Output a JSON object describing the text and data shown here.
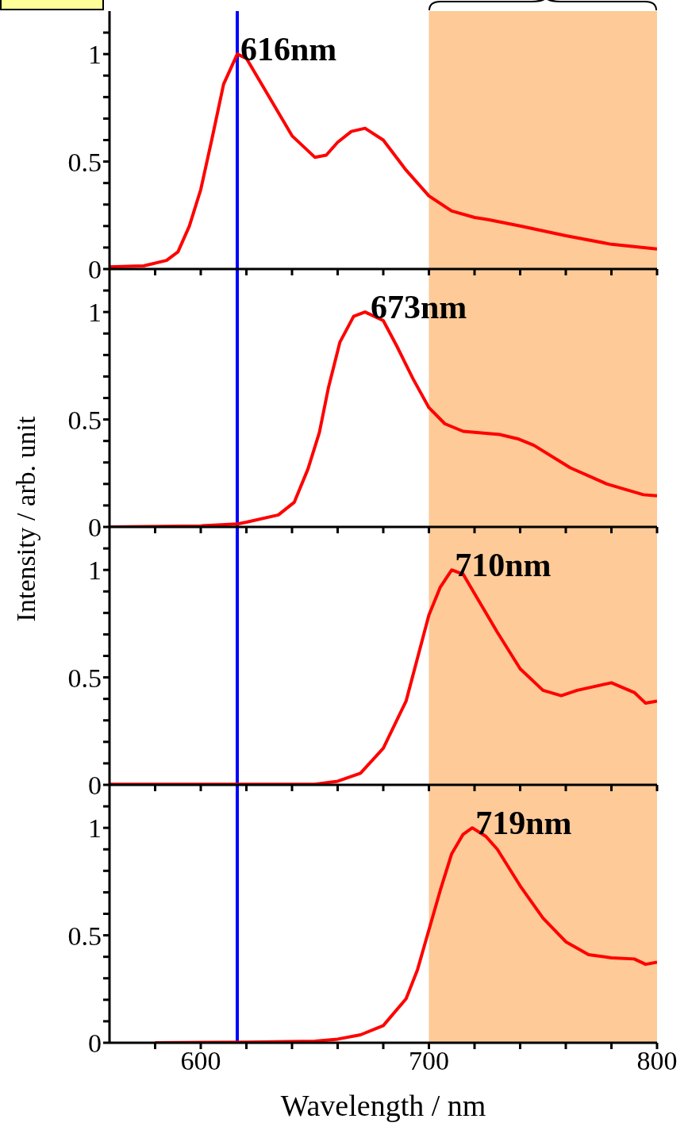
{
  "chart_data": [
    {
      "type": "line",
      "tick_labels": "y",
      "xlim": [
        560,
        800
      ],
      "ylim": [
        0,
        1.2
      ],
      "xticks": [
        {
          "value": 580,
          "label": null
        },
        600,
        {
          "value": 620,
          "label": null
        },
        {
          "value": 640,
          "label": null
        },
        {
          "value": 660,
          "label": null
        },
        {
          "value": 680,
          "label": null
        },
        700,
        {
          "value": 720,
          "label": null
        },
        {
          "value": 740,
          "label": null
        },
        {
          "value": 760,
          "label": null
        },
        {
          "value": 780,
          "label": null
        },
        800
      ],
      "yticks": [
        0,
        {
          "value": 0.1,
          "label": null
        },
        {
          "value": 0.2,
          "label": null
        },
        {
          "value": 0.3,
          "label": null
        },
        {
          "value": 0.4,
          "label": null
        },
        0.5,
        {
          "value": 0.6,
          "label": null
        },
        {
          "value": 0.7,
          "label": null
        },
        {
          "value": 0.8,
          "label": null
        },
        {
          "value": 0.9,
          "label": null
        },
        1,
        {
          "value": 1.1,
          "label": null
        }
      ],
      "series": [
        {
          "color": "#ff0000",
          "x": [
            560,
            575,
            585,
            590,
            595,
            600,
            605,
            610,
            616,
            620,
            630,
            640,
            650,
            655,
            660,
            666,
            672,
            680,
            690,
            700,
            710,
            720,
            726,
            740,
            760,
            780,
            800
          ],
          "values": [
            0.01,
            0.015,
            0.04,
            0.08,
            0.2,
            0.37,
            0.61,
            0.86,
            1.0,
            0.98,
            0.8,
            0.62,
            0.52,
            0.53,
            0.59,
            0.64,
            0.655,
            0.6,
            0.46,
            0.34,
            0.27,
            0.24,
            0.23,
            0.2,
            0.155,
            0.115,
            0.093
          ]
        }
      ],
      "ref_lines": [
        {
          "axis": "x",
          "value": 616,
          "color": "#0000ff"
        }
      ],
      "bands": [
        {
          "axis": "x",
          "from": 700,
          "to": 800,
          "color": "#fdca98"
        }
      ],
      "annotations": [
        {
          "text": "616nm",
          "x": 616,
          "y": 1
        }
      ]
    },
    {
      "type": "line",
      "tick_labels": "y",
      "xlim": [
        560,
        800
      ],
      "ylim": [
        0,
        1.2
      ],
      "ylabel": "Intensity / arb. unit",
      "xticks": [
        {
          "value": 580,
          "label": null
        },
        600,
        {
          "value": 620,
          "label": null
        },
        {
          "value": 640,
          "label": null
        },
        {
          "value": 660,
          "label": null
        },
        {
          "value": 680,
          "label": null
        },
        700,
        {
          "value": 720,
          "label": null
        },
        {
          "value": 740,
          "label": null
        },
        {
          "value": 760,
          "label": null
        },
        {
          "value": 780,
          "label": null
        },
        800
      ],
      "yticks": [
        0,
        {
          "value": 0.1,
          "label": null
        },
        {
          "value": 0.2,
          "label": null
        },
        {
          "value": 0.3,
          "label": null
        },
        {
          "value": 0.4,
          "label": null
        },
        0.5,
        {
          "value": 0.6,
          "label": null
        },
        {
          "value": 0.7,
          "label": null
        },
        {
          "value": 0.8,
          "label": null
        },
        {
          "value": 0.9,
          "label": null
        },
        1,
        {
          "value": 1.1,
          "label": null
        }
      ],
      "series": [
        {
          "color": "#ff0000",
          "x": [
            560,
            600,
            616,
            620,
            634,
            641,
            647,
            652,
            656,
            661,
            667,
            672,
            680,
            686,
            693,
            700,
            707,
            715,
            731,
            739,
            746,
            762,
            778,
            794,
            800
          ],
          "values": [
            0.0,
            0.005,
            0.014,
            0.022,
            0.056,
            0.115,
            0.27,
            0.44,
            0.65,
            0.86,
            0.98,
            1.0,
            0.96,
            0.84,
            0.69,
            0.555,
            0.48,
            0.445,
            0.43,
            0.41,
            0.38,
            0.275,
            0.2,
            0.15,
            0.145
          ]
        }
      ],
      "ref_lines": [
        {
          "axis": "x",
          "value": 616,
          "color": "#0000ff"
        }
      ],
      "bands": [
        {
          "axis": "x",
          "from": 700,
          "to": 800,
          "color": "#fdca98"
        }
      ],
      "annotations": [
        {
          "text": "673nm",
          "x": 673,
          "y": 1
        }
      ]
    },
    {
      "type": "line",
      "tick_labels": "y",
      "xlim": [
        560,
        800
      ],
      "ylim": [
        0,
        1.2
      ],
      "xticks": [
        {
          "value": 580,
          "label": null
        },
        600,
        {
          "value": 620,
          "label": null
        },
        {
          "value": 640,
          "label": null
        },
        {
          "value": 660,
          "label": null
        },
        {
          "value": 680,
          "label": null
        },
        700,
        {
          "value": 720,
          "label": null
        },
        {
          "value": 740,
          "label": null
        },
        {
          "value": 760,
          "label": null
        },
        {
          "value": 780,
          "label": null
        },
        800
      ],
      "yticks": [
        0,
        {
          "value": 0.1,
          "label": null
        },
        {
          "value": 0.2,
          "label": null
        },
        {
          "value": 0.3,
          "label": null
        },
        {
          "value": 0.4,
          "label": null
        },
        0.5,
        {
          "value": 0.6,
          "label": null
        },
        {
          "value": 0.7,
          "label": null
        },
        {
          "value": 0.8,
          "label": null
        },
        {
          "value": 0.9,
          "label": null
        },
        1,
        {
          "value": 1.1,
          "label": null
        }
      ],
      "series": [
        {
          "color": "#ff0000",
          "x": [
            560,
            600,
            650,
            660,
            670,
            680,
            690,
            700,
            705,
            710,
            715,
            720,
            730,
            740,
            750,
            758,
            765,
            780,
            790,
            795,
            800
          ],
          "values": [
            0.003,
            0.003,
            0.003,
            0.017,
            0.054,
            0.17,
            0.39,
            0.79,
            0.92,
            1.0,
            0.98,
            0.89,
            0.71,
            0.54,
            0.44,
            0.415,
            0.44,
            0.475,
            0.43,
            0.38,
            0.39
          ]
        }
      ],
      "ref_lines": [
        {
          "axis": "x",
          "value": 616,
          "color": "#0000ff"
        }
      ],
      "bands": [
        {
          "axis": "x",
          "from": 700,
          "to": 800,
          "color": "#fdca98"
        }
      ],
      "annotations": [
        {
          "text": "710nm",
          "x": 710,
          "y": 1
        }
      ]
    },
    {
      "type": "line",
      "xlim": [
        560,
        800
      ],
      "ylim": [
        0,
        1.2
      ],
      "xlabel": "Wavelength / nm",
      "xticks": [
        {
          "value": 580,
          "label": null
        },
        600,
        {
          "value": 620,
          "label": null
        },
        {
          "value": 640,
          "label": null
        },
        {
          "value": 660,
          "label": null
        },
        {
          "value": 680,
          "label": null
        },
        700,
        {
          "value": 720,
          "label": null
        },
        {
          "value": 740,
          "label": null
        },
        {
          "value": 760,
          "label": null
        },
        {
          "value": 780,
          "label": null
        },
        800
      ],
      "yticks": [
        0,
        {
          "value": 0.1,
          "label": null
        },
        {
          "value": 0.2,
          "label": null
        },
        {
          "value": 0.3,
          "label": null
        },
        {
          "value": 0.4,
          "label": null
        },
        0.5,
        {
          "value": 0.6,
          "label": null
        },
        {
          "value": 0.7,
          "label": null
        },
        {
          "value": 0.8,
          "label": null
        },
        {
          "value": 0.9,
          "label": null
        },
        1,
        {
          "value": 1.1,
          "label": null
        }
      ],
      "series": [
        {
          "color": "#ff0000",
          "x": [
            580,
            620,
            650,
            660,
            670,
            680,
            690,
            695,
            700,
            705,
            710,
            715,
            719,
            725,
            730,
            740,
            750,
            760,
            770,
            780,
            790,
            795,
            800
          ],
          "values": [
            0.0,
            0.003,
            0.007,
            0.017,
            0.037,
            0.08,
            0.205,
            0.34,
            0.525,
            0.71,
            0.88,
            0.97,
            1.0,
            0.96,
            0.9,
            0.73,
            0.58,
            0.47,
            0.41,
            0.395,
            0.39,
            0.365,
            0.375
          ]
        }
      ],
      "ref_lines": [
        {
          "axis": "x",
          "value": 616,
          "color": "#0000ff"
        }
      ],
      "bands": [
        {
          "axis": "x",
          "from": 700,
          "to": 800,
          "color": "#fdca98"
        }
      ],
      "annotations": [
        {
          "text": "719nm",
          "x": 719,
          "y": 1
        }
      ]
    }
  ]
}
